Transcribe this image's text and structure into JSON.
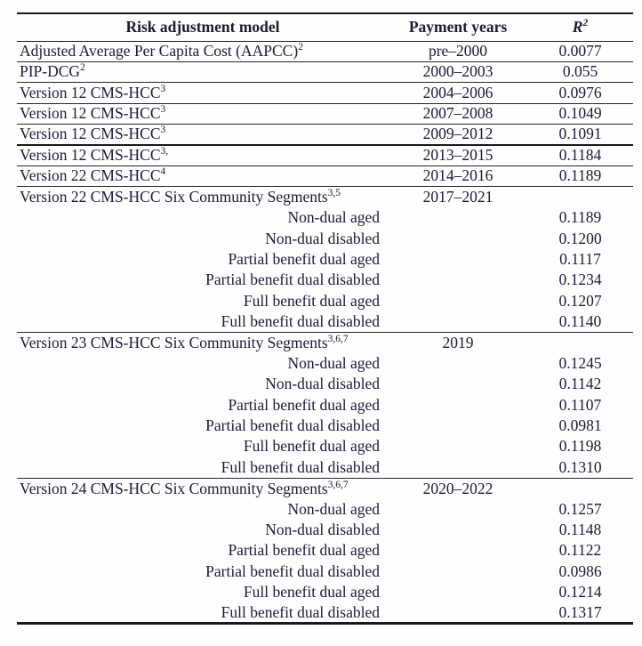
{
  "colors": {
    "background": "#fefefe",
    "text": "#1b1b33",
    "rule": "#1d1d1d"
  },
  "table": {
    "header": {
      "model": "Risk adjustment model",
      "years": "Payment years",
      "r2_base": "R",
      "r2_sup": "2"
    },
    "rows": [
      {
        "label": "Adjusted Average Per Capita Cost (AAPCC)",
        "sup": "2",
        "indent": false,
        "years": "pre–2000",
        "r2": "0.0077",
        "rule": "thin"
      },
      {
        "label": "PIP-DCG",
        "sup": "2",
        "indent": false,
        "years": "2000–2003",
        "r2": "0.055",
        "rule": "thin"
      },
      {
        "label": "Version 12 CMS-HCC",
        "sup": "3",
        "indent": false,
        "years": "2004–2006",
        "r2": "0.0976",
        "rule": "thin"
      },
      {
        "label": "Version 12 CMS-HCC",
        "sup": "3",
        "indent": false,
        "years": "2007–2008",
        "r2": "0.1049",
        "rule": "thin"
      },
      {
        "label": "Version 12 CMS-HCC",
        "sup": "3",
        "indent": false,
        "years": "2009–2012",
        "r2": "0.1091",
        "rule": "thick"
      },
      {
        "label": "Version 12 CMS-HCC",
        "sup": "3,",
        "indent": false,
        "years": "2013–2015",
        "r2": "0.1184",
        "rule": "thin"
      },
      {
        "label": "Version 22 CMS-HCC",
        "sup": "4",
        "indent": false,
        "years": "2014–2016",
        "r2": "0.1189",
        "rule": "thin"
      },
      {
        "label": "Version 22 CMS-HCC Six Community Segments",
        "sup": "3,5",
        "indent": false,
        "years": "2017–2021",
        "r2": "",
        "rule": "none"
      },
      {
        "label": "Non-dual aged",
        "sup": "",
        "indent": true,
        "years": "",
        "r2": "0.1189",
        "rule": "none"
      },
      {
        "label": "Non-dual disabled",
        "sup": "",
        "indent": true,
        "years": "",
        "r2": "0.1200",
        "rule": "none"
      },
      {
        "label": "Partial benefit dual aged",
        "sup": "",
        "indent": true,
        "years": "",
        "r2": "0.1117",
        "rule": "none"
      },
      {
        "label": "Partial benefit dual disabled",
        "sup": "",
        "indent": true,
        "years": "",
        "r2": "0.1234",
        "rule": "none"
      },
      {
        "label": "Full benefit dual aged",
        "sup": "",
        "indent": true,
        "years": "",
        "r2": "0.1207",
        "rule": "none"
      },
      {
        "label": "Full benefit dual disabled",
        "sup": "",
        "indent": true,
        "years": "",
        "r2": "0.1140",
        "rule": "thin"
      },
      {
        "label": "Version 23 CMS-HCC Six Community Segments",
        "sup": "3,6,7",
        "indent": false,
        "years": "2019",
        "r2": "",
        "rule": "none"
      },
      {
        "label": "Non-dual aged",
        "sup": "",
        "indent": true,
        "years": "",
        "r2": "0.1245",
        "rule": "none"
      },
      {
        "label": "Non-dual disabled",
        "sup": "",
        "indent": true,
        "years": "",
        "r2": "0.1142",
        "rule": "none"
      },
      {
        "label": "Partial benefit dual aged",
        "sup": "",
        "indent": true,
        "years": "",
        "r2": "0.1107",
        "rule": "none"
      },
      {
        "label": "Partial benefit dual disabled",
        "sup": "",
        "indent": true,
        "years": "",
        "r2": "0.0981",
        "rule": "none"
      },
      {
        "label": "Full benefit dual aged",
        "sup": "",
        "indent": true,
        "years": "",
        "r2": "0.1198",
        "rule": "none"
      },
      {
        "label": "Full benefit dual disabled",
        "sup": "",
        "indent": true,
        "years": "",
        "r2": "0.1310",
        "rule": "thin"
      },
      {
        "label": "Version 24 CMS-HCC Six Community Segments",
        "sup": "3,6,7",
        "indent": false,
        "years": "2020–2022",
        "r2": "",
        "rule": "none"
      },
      {
        "label": "Non-dual aged",
        "sup": "",
        "indent": true,
        "years": "",
        "r2": "0.1257",
        "rule": "none"
      },
      {
        "label": "Non-dual disabled",
        "sup": "",
        "indent": true,
        "years": "",
        "r2": "0.1148",
        "rule": "none"
      },
      {
        "label": "Partial benefit dual aged",
        "sup": "",
        "indent": true,
        "years": "",
        "r2": "0.1122",
        "rule": "none"
      },
      {
        "label": "Partial benefit dual disabled",
        "sup": "",
        "indent": true,
        "years": "",
        "r2": "0.0986",
        "rule": "none"
      },
      {
        "label": "Full benefit dual aged",
        "sup": "",
        "indent": true,
        "years": "",
        "r2": "0.1214",
        "rule": "none"
      },
      {
        "label": "Full benefit dual disabled",
        "sup": "",
        "indent": true,
        "years": "",
        "r2": "0.1317",
        "rule": "none"
      }
    ]
  }
}
